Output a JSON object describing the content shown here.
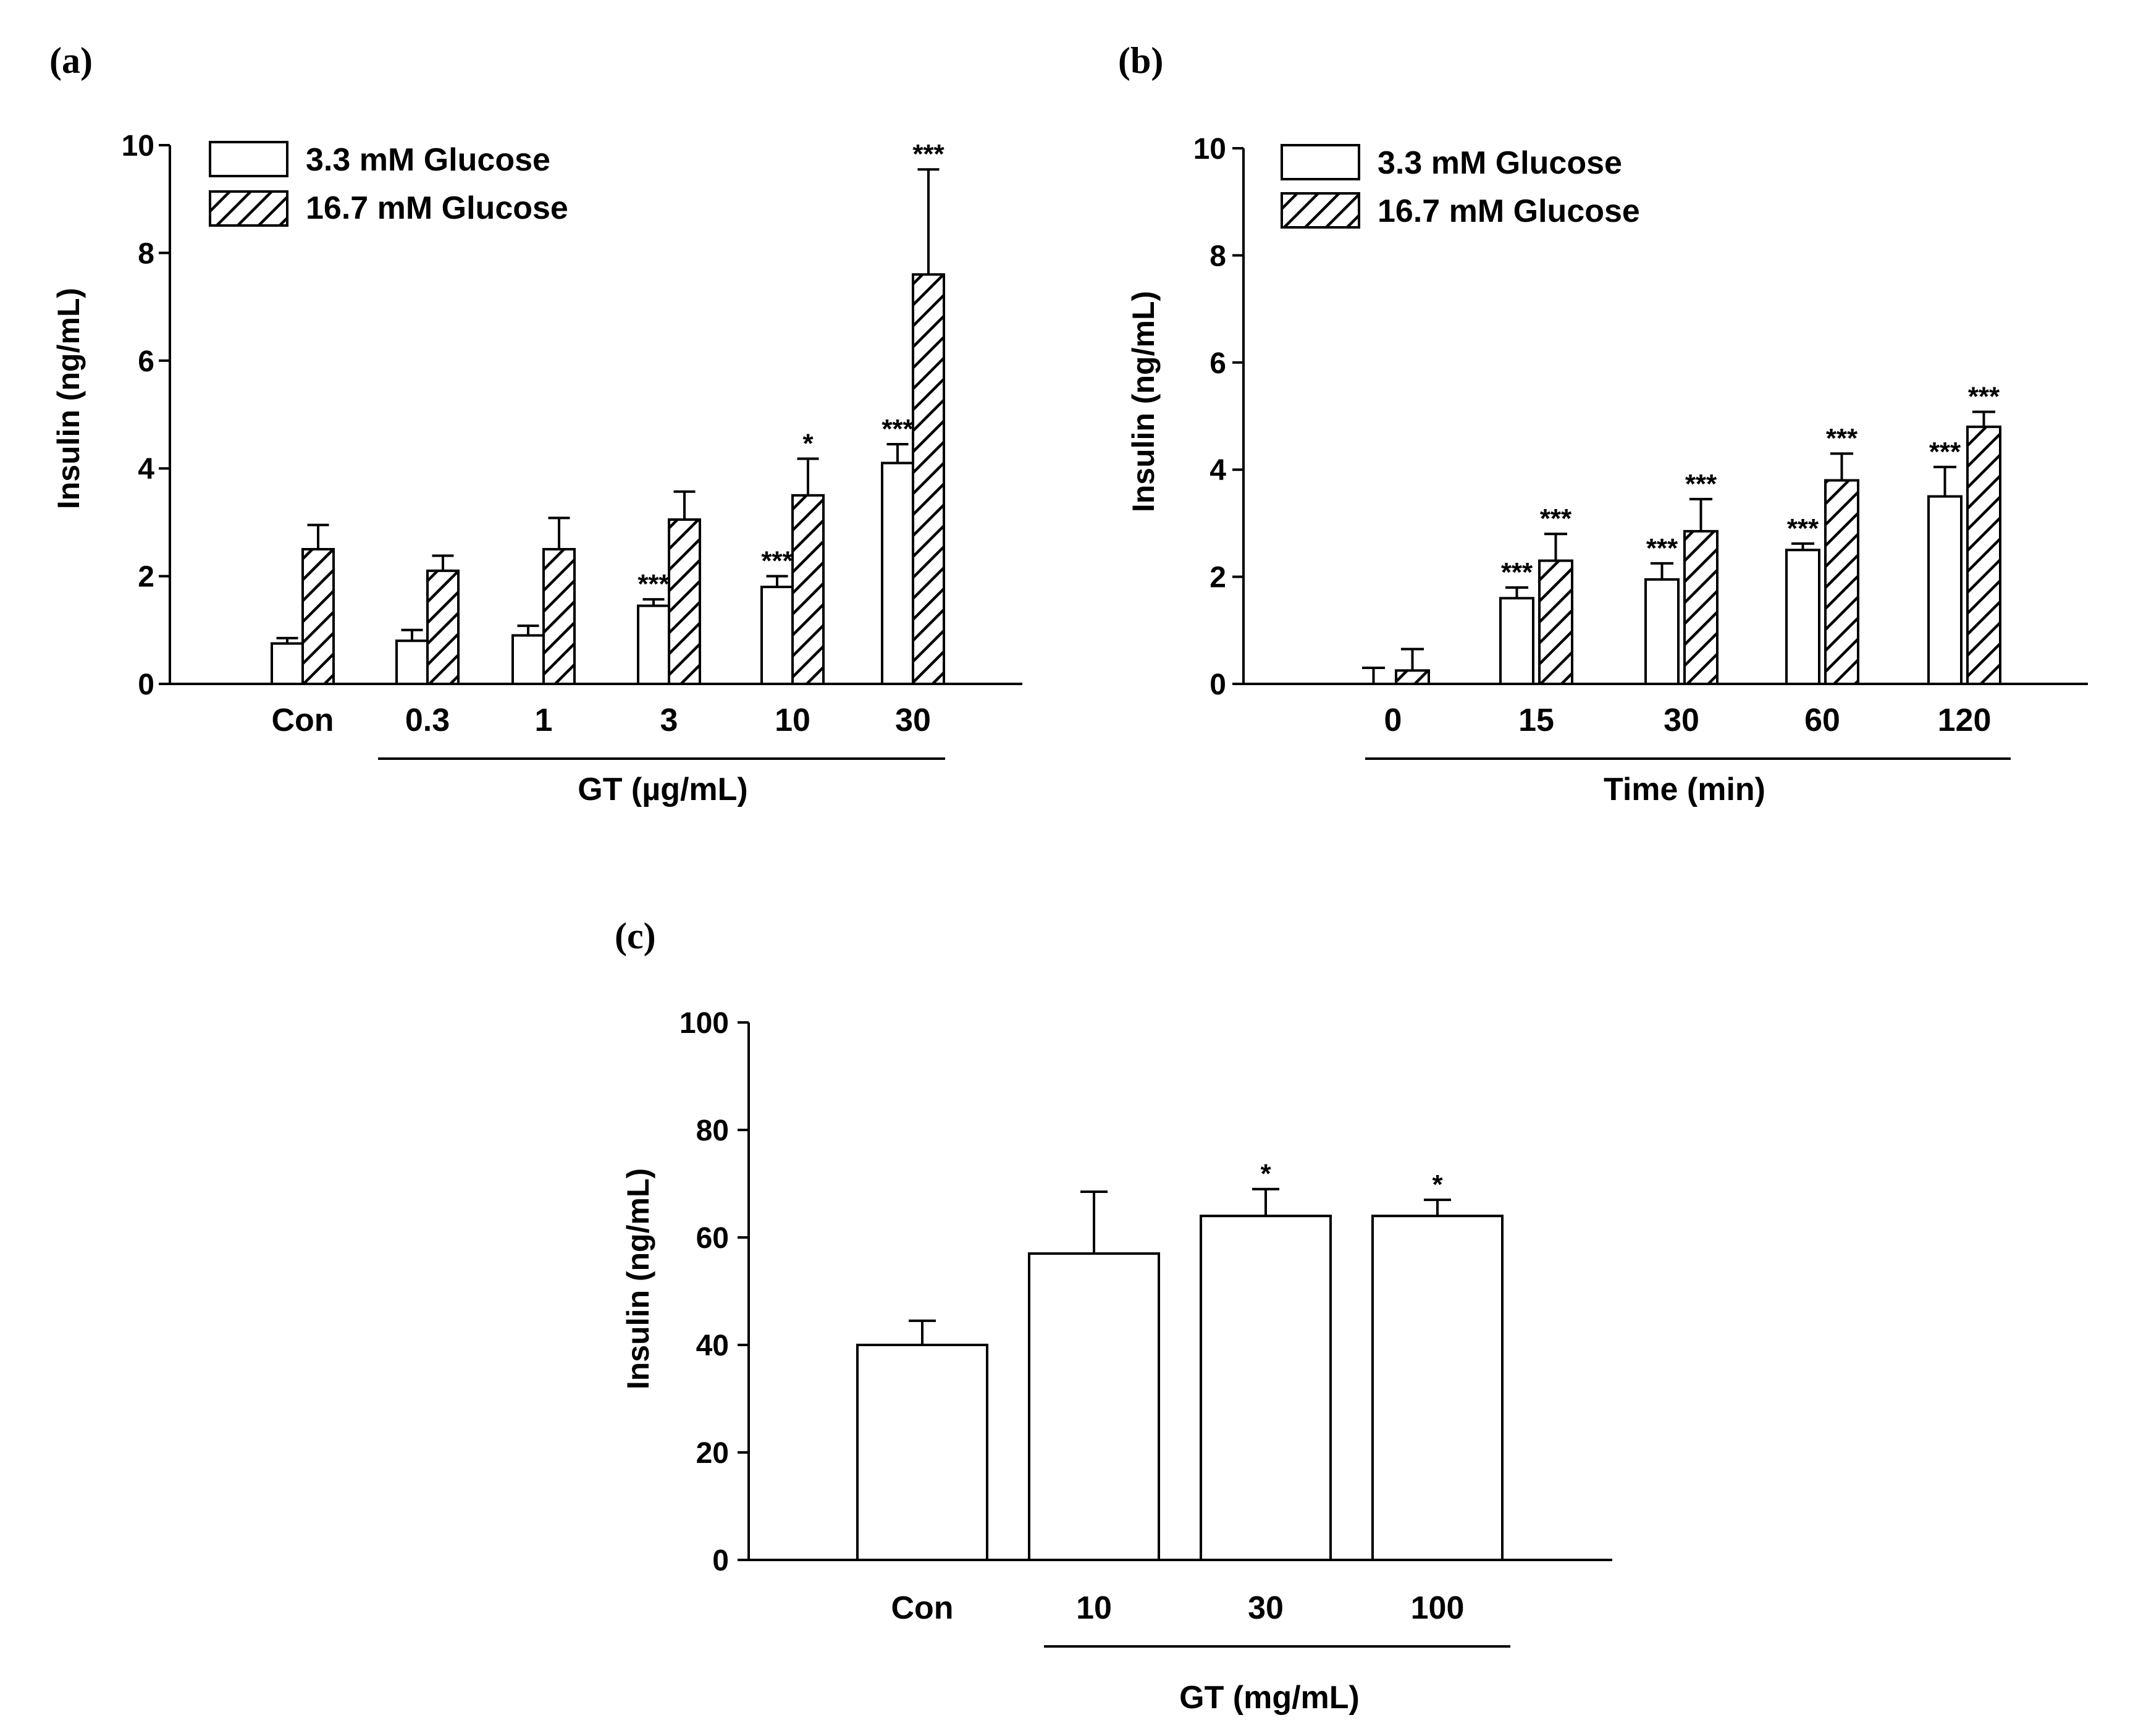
{
  "colors": {
    "ink": "#000000",
    "background": "#ffffff"
  },
  "chart_data": [
    {
      "type": "bar",
      "panel_label": "(a)",
      "title": "",
      "ylabel": "Insulin (ng/mL)",
      "xlabel": "GT (µg/mL)",
      "ylim": [
        0,
        10
      ],
      "yticks": [
        0,
        2,
        4,
        6,
        8,
        10
      ],
      "categories": [
        "Con",
        "0.3",
        "1",
        "3",
        "10",
        "30"
      ],
      "grouped_from_index": 1,
      "legend_position": "top-left",
      "series": [
        {
          "name": "3.3 mM Glucose",
          "pattern": "open",
          "values": [
            0.75,
            0.8,
            0.9,
            1.45,
            1.8,
            4.1
          ],
          "errors": [
            0.1,
            0.2,
            0.18,
            0.12,
            0.2,
            0.35
          ],
          "sig": [
            "",
            "",
            "",
            "***",
            "***",
            "***"
          ]
        },
        {
          "name": "16.7 mM Glucose",
          "pattern": "hatched",
          "values": [
            2.5,
            2.1,
            2.5,
            3.05,
            3.5,
            7.6
          ],
          "errors": [
            0.45,
            0.28,
            0.58,
            0.52,
            0.68,
            1.95
          ],
          "sig": [
            "",
            "",
            "",
            "",
            "*",
            "***"
          ]
        }
      ]
    },
    {
      "type": "bar",
      "panel_label": "(b)",
      "title": "",
      "ylabel": "Insulin (ng/mL)",
      "xlabel": "Time (min)",
      "ylim": [
        0,
        10
      ],
      "yticks": [
        0,
        2,
        4,
        6,
        8,
        10
      ],
      "categories": [
        "0",
        "15",
        "30",
        "60",
        "120"
      ],
      "grouped_from_index": 0,
      "legend_position": "top-left",
      "series": [
        {
          "name": "3.3 mM Glucose",
          "pattern": "open",
          "values": [
            0.0,
            1.6,
            1.95,
            2.5,
            3.5
          ],
          "errors": [
            0.3,
            0.2,
            0.3,
            0.12,
            0.55
          ],
          "sig": [
            "",
            "***",
            "***",
            "***",
            "***"
          ]
        },
        {
          "name": "16.7 mM Glucose",
          "pattern": "hatched",
          "values": [
            0.25,
            2.3,
            2.85,
            3.8,
            4.8
          ],
          "errors": [
            0.4,
            0.5,
            0.6,
            0.5,
            0.28
          ],
          "sig": [
            "",
            "***",
            "***",
            "***",
            "***"
          ]
        }
      ]
    },
    {
      "type": "bar",
      "panel_label": "(c)",
      "title": "",
      "ylabel": "Insulin (ng/mL)",
      "xlabel": "GT (mg/mL)",
      "ylim": [
        0,
        100
      ],
      "yticks": [
        0,
        20,
        40,
        60,
        80,
        100
      ],
      "categories": [
        "Con",
        "10",
        "30",
        "100"
      ],
      "grouped_from_index": 1,
      "series": [
        {
          "name": "",
          "pattern": "open",
          "values": [
            40,
            57,
            64,
            64
          ],
          "errors": [
            4.5,
            11.5,
            5,
            3
          ],
          "sig": [
            "",
            "",
            "*",
            "*"
          ]
        }
      ]
    }
  ]
}
